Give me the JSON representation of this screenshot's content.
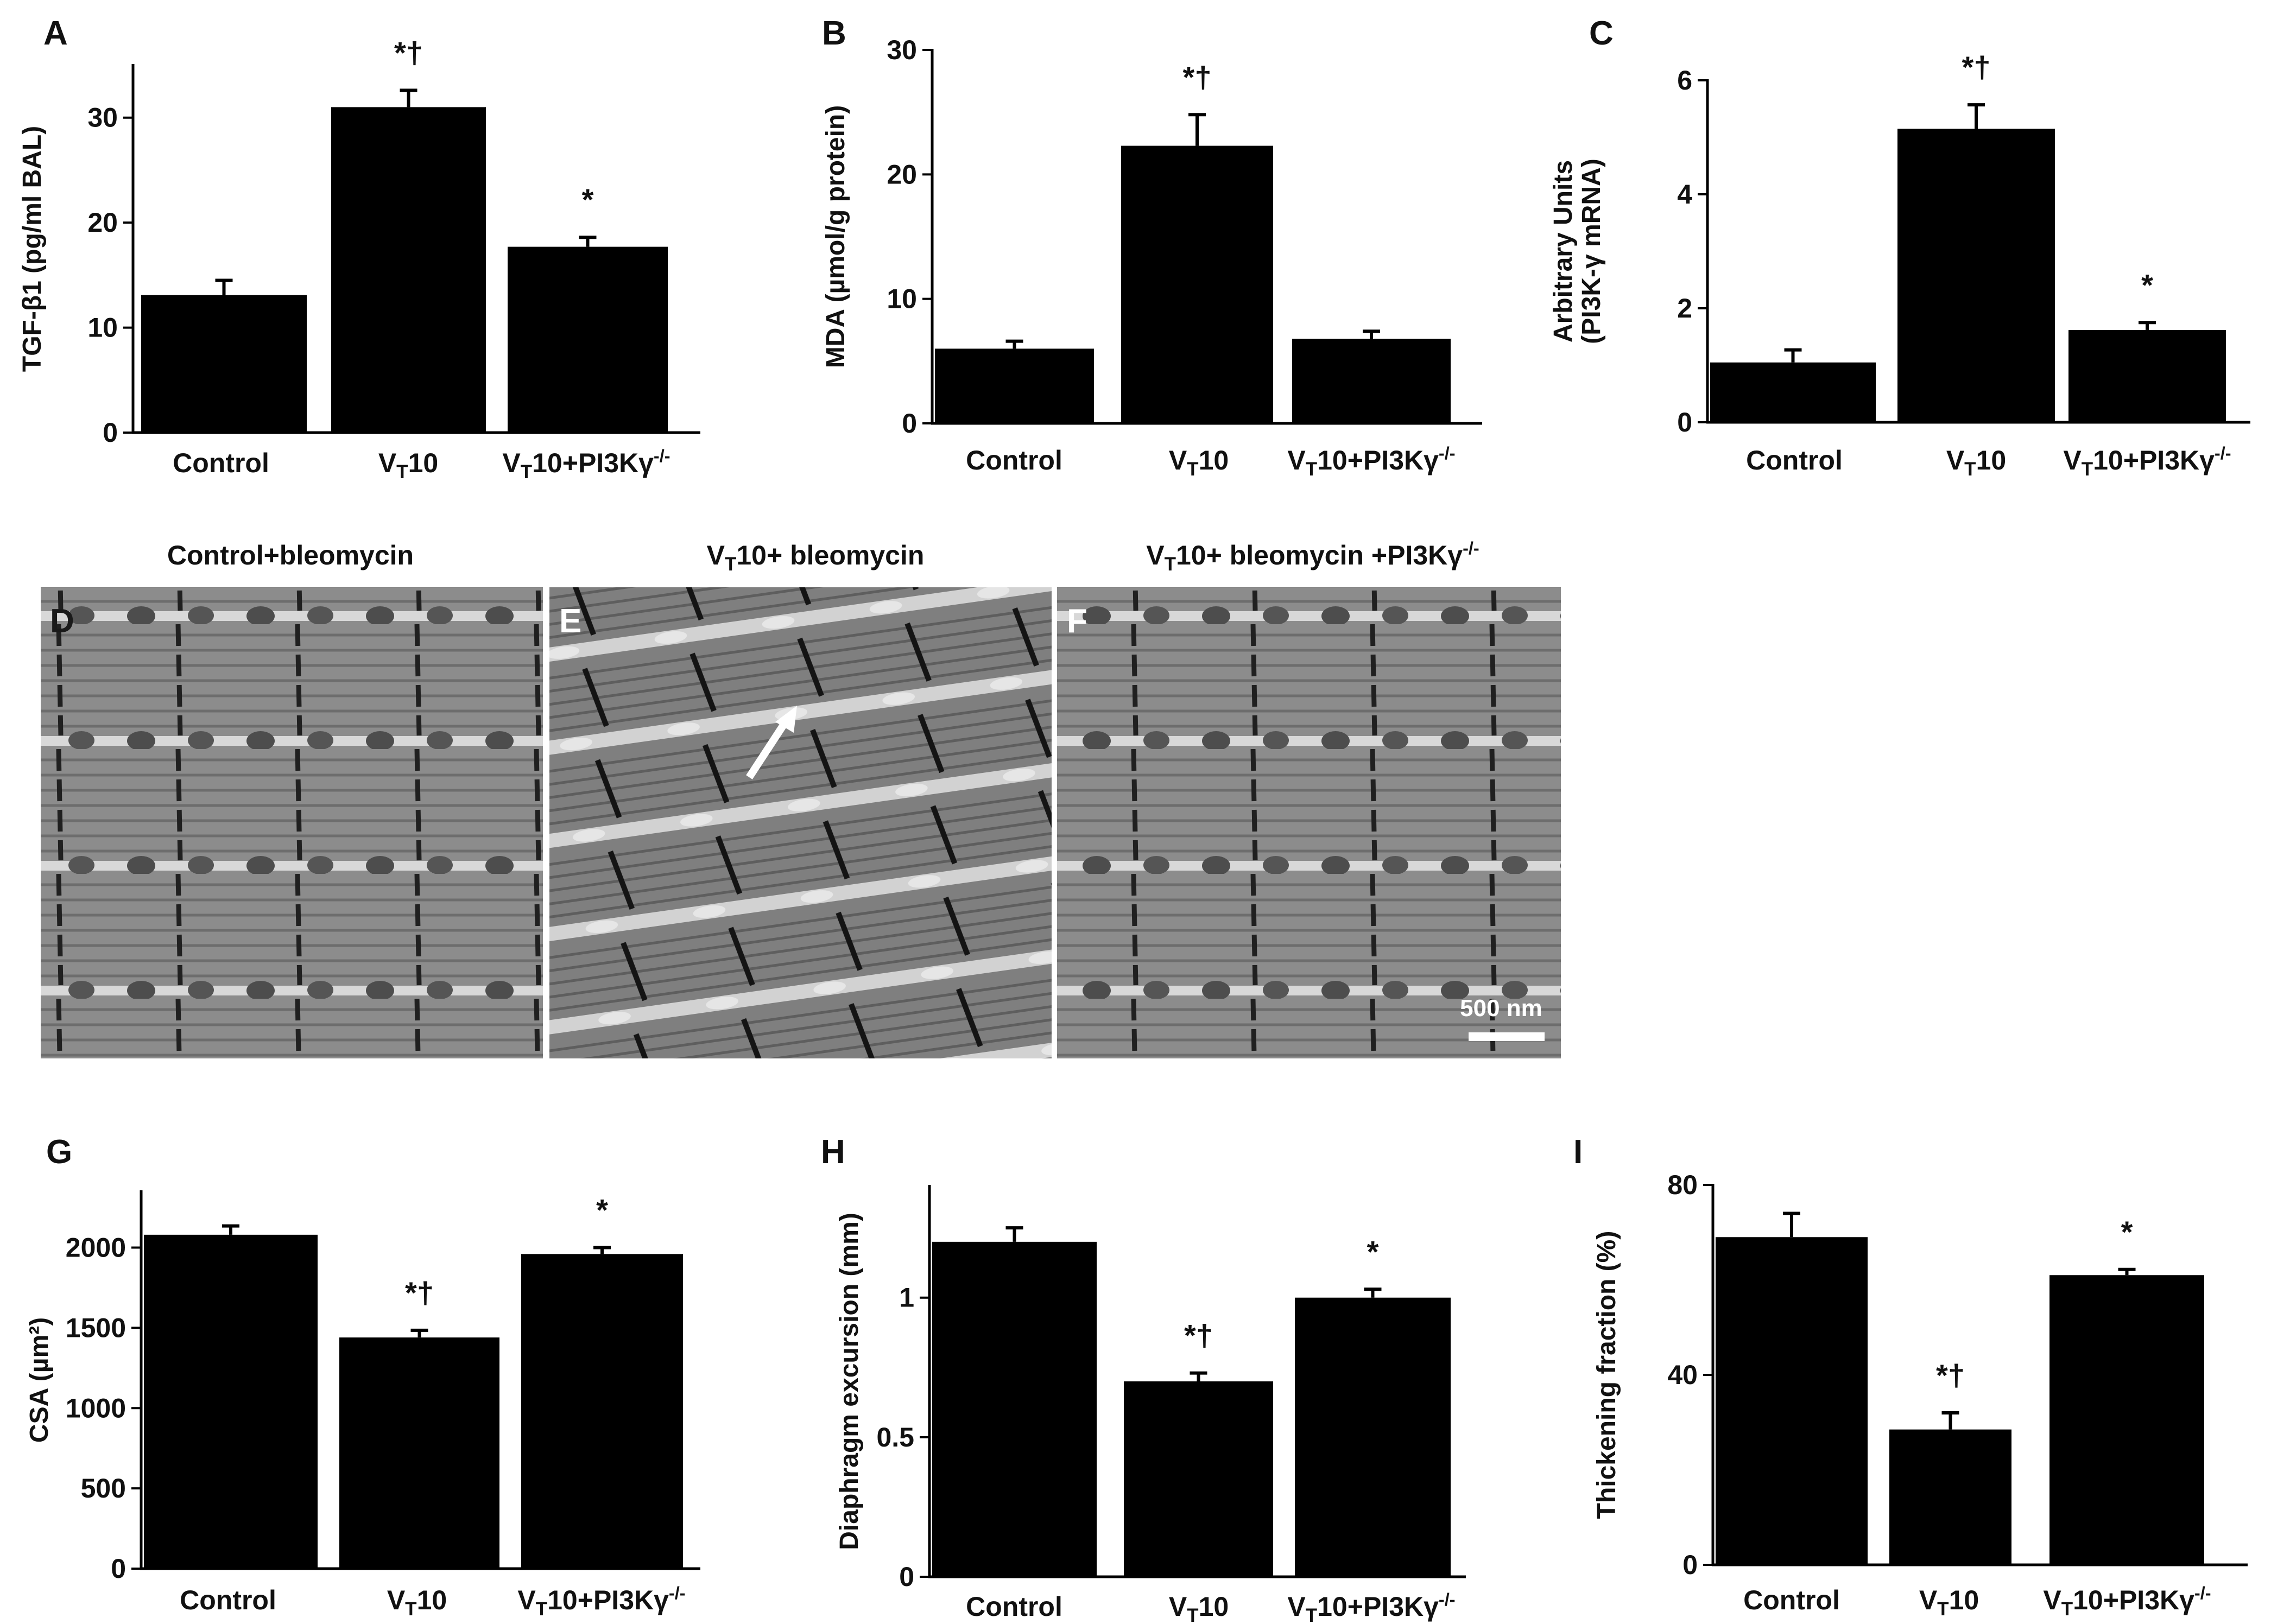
{
  "chart_data": [
    {
      "panel": "A",
      "type": "bar",
      "ylabel": "TGF-β1 (pg/ml BAL)",
      "yticks": [
        0,
        10,
        20,
        30
      ],
      "ylim": [
        0,
        35
      ],
      "categories": [
        "Control",
        "VT10",
        "VT10+PI3Kγ-/-"
      ],
      "values": [
        13.1,
        31.0,
        17.7
      ],
      "errors": [
        1.4,
        1.6,
        0.9
      ],
      "annotations": [
        "",
        "*†",
        "*"
      ]
    },
    {
      "panel": "B",
      "type": "bar",
      "ylabel": "MDA (µmol/g protein)",
      "yticks": [
        0,
        10,
        20,
        30
      ],
      "ylim": [
        0,
        30
      ],
      "categories": [
        "Control",
        "VT10",
        "VT10+PI3Kγ-/-"
      ],
      "values": [
        6.0,
        22.3,
        6.8
      ],
      "errors": [
        0.6,
        2.5,
        0.6
      ],
      "annotations": [
        "",
        "*†",
        ""
      ]
    },
    {
      "panel": "C",
      "type": "bar",
      "ylabel_lines": [
        "Arbitrary Units",
        "(PI3K-γ mRNA)"
      ],
      "yticks": [
        0,
        2,
        4,
        6
      ],
      "ylim": [
        0,
        6
      ],
      "categories": [
        "Control",
        "VT10",
        "VT10+PI3Kγ-/-"
      ],
      "values": [
        1.05,
        5.15,
        1.62
      ],
      "errors": [
        0.22,
        0.42,
        0.13
      ],
      "annotations": [
        "",
        "*†",
        "*"
      ]
    },
    {
      "panel": "G",
      "type": "bar",
      "ylabel": "CSA (µm²)",
      "yticks": [
        0,
        500,
        1000,
        1500,
        2000
      ],
      "ylim": [
        0,
        2350
      ],
      "categories": [
        "Control",
        "VT10",
        "VT10+PI3Kγ-/-"
      ],
      "values": [
        2080,
        1440,
        1960
      ],
      "errors": [
        55,
        45,
        40
      ],
      "annotations": [
        "",
        "*†",
        "*"
      ]
    },
    {
      "panel": "H",
      "type": "bar",
      "ylabel": "Diaphragm excursion (mm)",
      "yticks": [
        0,
        0.5,
        1
      ],
      "yticklabels": [
        "0",
        "0.5",
        "1"
      ],
      "ylim": [
        0,
        1.4
      ],
      "categories": [
        "Control",
        "VT10",
        "VT10+PI3Kγ-/-"
      ],
      "values": [
        1.2,
        0.7,
        1.0
      ],
      "errors": [
        0.05,
        0.03,
        0.03
      ],
      "annotations": [
        "",
        "*†",
        "*"
      ]
    },
    {
      "panel": "I",
      "type": "bar",
      "ylabel": "Thickening fraction (%)",
      "yticks": [
        0,
        40,
        80
      ],
      "ylim": [
        0,
        80
      ],
      "categories": [
        "Control",
        "VT10",
        "VT10+PI3Kγ-/-"
      ],
      "values": [
        69,
        28.5,
        61
      ],
      "errors": [
        5,
        3.5,
        1.2
      ],
      "annotations": [
        "",
        "*†",
        "*"
      ]
    }
  ],
  "micrographs": [
    {
      "letter": "D",
      "title": "Control+bleomycin"
    },
    {
      "letter": "E",
      "title": "VT10+ bleomycin"
    },
    {
      "letter": "F",
      "title": "VT10+ bleomycin +PI3Kγ-/-",
      "scale_bar": "500 nm"
    }
  ]
}
